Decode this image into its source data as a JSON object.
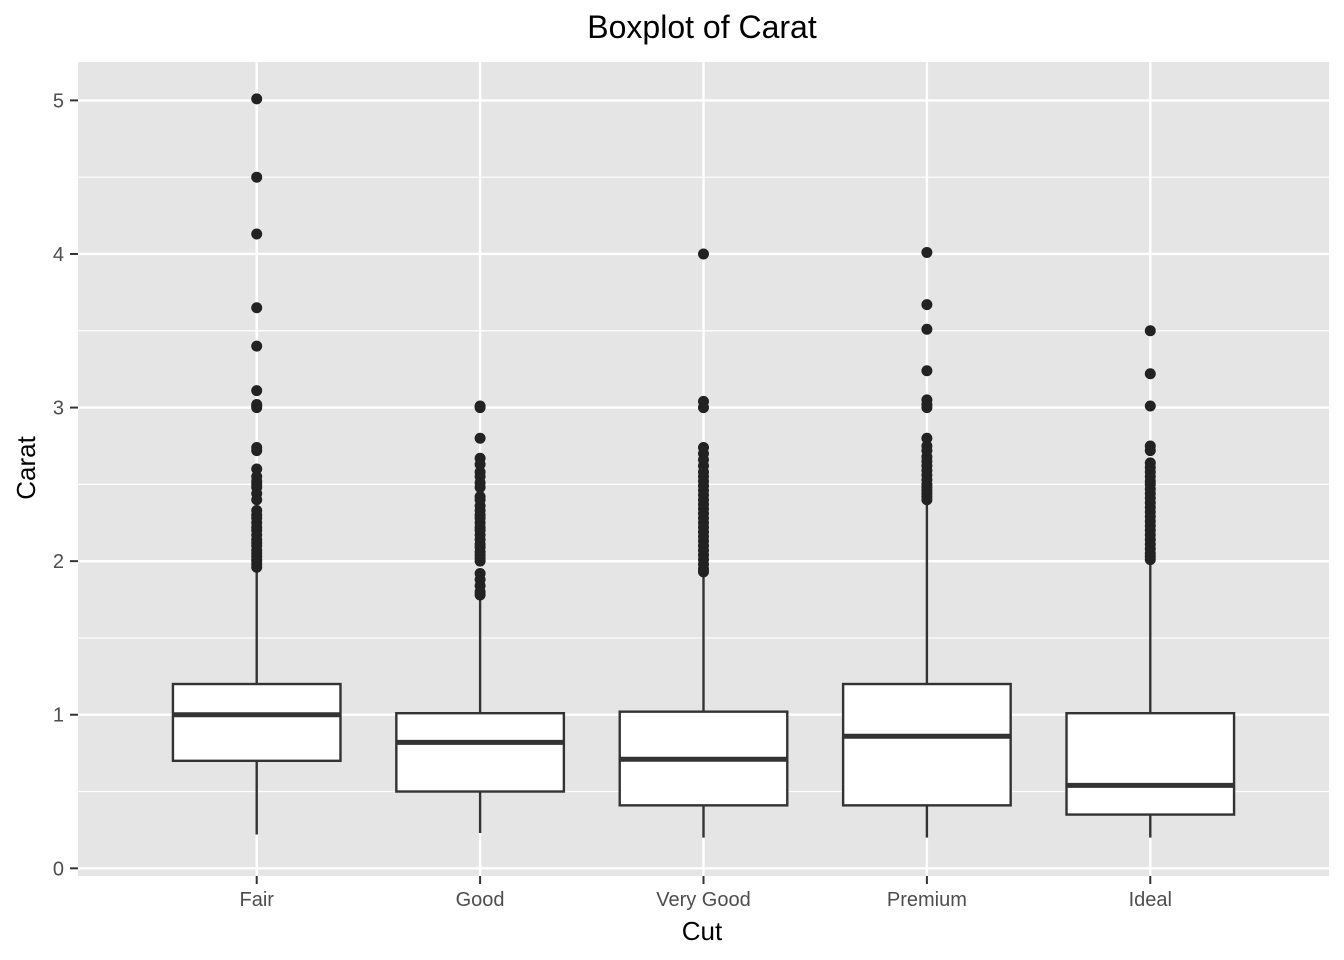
{
  "chart_data": {
    "type": "boxplot",
    "title": "Boxplot of Carat",
    "xlabel": "Cut",
    "ylabel": "Carat",
    "categories": [
      "Fair",
      "Good",
      "Very Good",
      "Premium",
      "Ideal"
    ],
    "ylim": [
      -0.05,
      5.25
    ],
    "yticks": [
      0,
      1,
      2,
      3,
      4,
      5
    ],
    "grid": true,
    "legend": "none",
    "colors": {
      "panel": "#e5e5e5",
      "grid": "#ffffff",
      "box_fill": "#ffffff",
      "box_stroke": "#333333",
      "point": "#222222",
      "tick_text": "#4d4d4d",
      "tick_mark": "#333333"
    },
    "boxes": [
      {
        "category": "Fair",
        "lower_whisker": 0.22,
        "q1": 0.7,
        "median": 1.0,
        "q3": 1.2,
        "upper_whisker": 1.95,
        "outliers": [
          5.01,
          4.5,
          4.13,
          3.65,
          3.4,
          3.11,
          3.02,
          3.01,
          3.0,
          2.74,
          2.72,
          2.6,
          2.55,
          2.52,
          2.5,
          2.48,
          2.44,
          2.4,
          2.33,
          2.3,
          2.28,
          2.25,
          2.22,
          2.2,
          2.17,
          2.14,
          2.12,
          2.1,
          2.07,
          2.05,
          2.03,
          2.01,
          2.0,
          1.98,
          1.96
        ]
      },
      {
        "category": "Good",
        "lower_whisker": 0.23,
        "q1": 0.5,
        "median": 0.82,
        "q3": 1.01,
        "upper_whisker": 1.75,
        "outliers": [
          3.01,
          3.0,
          2.8,
          2.67,
          2.63,
          2.58,
          2.55,
          2.51,
          2.48,
          2.42,
          2.4,
          2.36,
          2.33,
          2.3,
          2.28,
          2.25,
          2.22,
          2.2,
          2.17,
          2.14,
          2.11,
          2.09,
          2.06,
          2.04,
          2.02,
          2.0,
          1.92,
          1.88,
          1.84,
          1.8,
          1.78
        ]
      },
      {
        "category": "Very Good",
        "lower_whisker": 0.2,
        "q1": 0.41,
        "median": 0.71,
        "q3": 1.02,
        "upper_whisker": 1.92,
        "outliers": [
          4.0,
          3.04,
          3.0,
          2.74,
          2.7,
          2.66,
          2.62,
          2.58,
          2.55,
          2.52,
          2.49,
          2.46,
          2.43,
          2.4,
          2.37,
          2.34,
          2.31,
          2.28,
          2.25,
          2.22,
          2.19,
          2.16,
          2.13,
          2.1,
          2.07,
          2.04,
          2.01,
          1.98,
          1.95,
          1.93
        ]
      },
      {
        "category": "Premium",
        "lower_whisker": 0.2,
        "q1": 0.41,
        "median": 0.86,
        "q3": 1.2,
        "upper_whisker": 2.38,
        "outliers": [
          4.01,
          3.67,
          3.51,
          3.24,
          3.05,
          3.02,
          3.0,
          2.8,
          2.75,
          2.72,
          2.68,
          2.65,
          2.62,
          2.59,
          2.56,
          2.53,
          2.5,
          2.48,
          2.46,
          2.44,
          2.42,
          2.4
        ]
      },
      {
        "category": "Ideal",
        "lower_whisker": 0.2,
        "q1": 0.35,
        "median": 0.54,
        "q3": 1.01,
        "upper_whisker": 2.0,
        "outliers": [
          3.5,
          3.22,
          3.01,
          2.75,
          2.72,
          2.64,
          2.61,
          2.58,
          2.55,
          2.52,
          2.5,
          2.47,
          2.44,
          2.41,
          2.38,
          2.35,
          2.32,
          2.29,
          2.26,
          2.23,
          2.2,
          2.17,
          2.14,
          2.11,
          2.08,
          2.05,
          2.03,
          2.01
        ]
      }
    ]
  }
}
